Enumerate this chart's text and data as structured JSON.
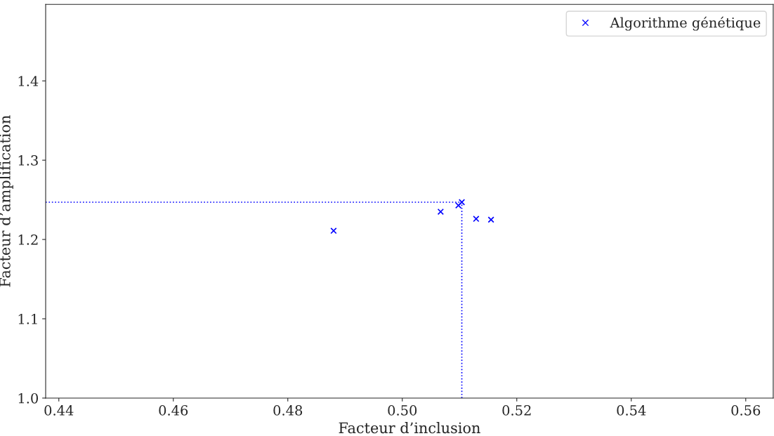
{
  "chart_data": {
    "type": "scatter",
    "xlabel": "Facteur d’inclusion",
    "ylabel": "Facteur d’amplification",
    "series": [
      {
        "name": "Algorithme génétique",
        "color": "#0000ff",
        "x": [
          0.488,
          0.5067,
          0.5098,
          0.5104,
          0.5129,
          0.5155
        ],
        "values": [
          1.211,
          1.235,
          1.243,
          1.247,
          1.226,
          1.225
        ]
      }
    ],
    "marker": "cross",
    "ref_lines": [
      {
        "axis": "y",
        "value": 1.247,
        "color": "#0000ff",
        "line_style": "dotted"
      },
      {
        "axis": "x",
        "value": 0.5104,
        "color": "#0000ff",
        "line_style": "dotted"
      }
    ],
    "xlim": [
      0.4377,
      0.5648
    ],
    "ylim": [
      1.0,
      1.4965
    ],
    "xticks": [
      0.44,
      0.46,
      0.48,
      {
        "value": 0.5,
        "label": "0.50"
      },
      0.52,
      0.54,
      0.56
    ],
    "yticks": [
      {
        "value": 1,
        "label": "1.0"
      },
      1.1,
      1.2,
      1.3,
      1.4
    ],
    "grid": false,
    "legend": "top right"
  }
}
